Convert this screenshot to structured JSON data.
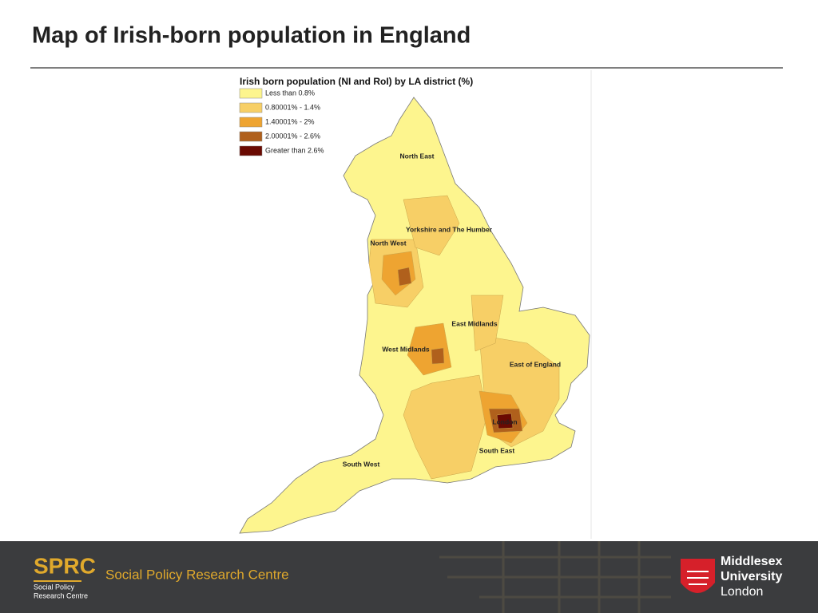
{
  "header": {
    "title": "Map of Irish-born population in England"
  },
  "map": {
    "title": "Irish born population (NI and RoI) by LA district (%)",
    "legend": [
      {
        "label": "Less than 0.8%",
        "color": "#fdf58e"
      },
      {
        "label": "0.80001% - 1.4%",
        "color": "#f7cf66"
      },
      {
        "label": "1.40001% - 2%",
        "color": "#eea431"
      },
      {
        "label": "2.00001% - 2.6%",
        "color": "#b0601c"
      },
      {
        "label": "Greater than 2.6%",
        "color": "#6a0a02"
      }
    ],
    "regions": [
      "North East",
      "Yorkshire and The Humber",
      "North West",
      "East Midlands",
      "West Midlands",
      "East of England",
      "London",
      "South East",
      "South West"
    ]
  },
  "footer": {
    "sprc_logo": "SPRC",
    "sprc_sub": [
      "Social Policy",
      "Research Centre"
    ],
    "centre_name": "Social Policy Research Centre",
    "university": [
      "Middlesex",
      "University",
      "London"
    ]
  }
}
